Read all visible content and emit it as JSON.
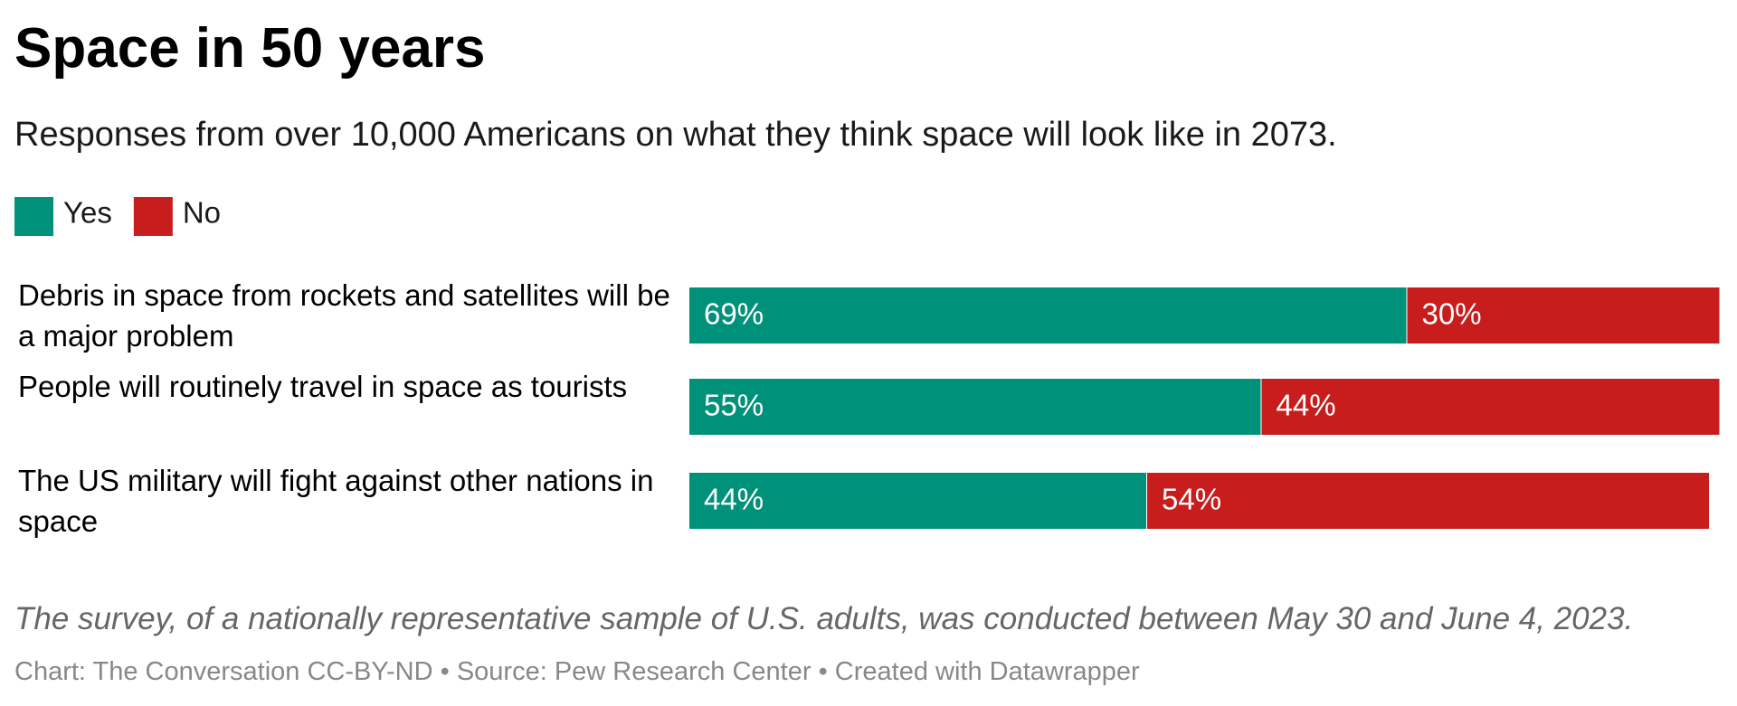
{
  "chart_data": {
    "type": "stacked-bar-horizontal",
    "title": "Space in 50 years",
    "subtitle": "Responses from over 10,000 Americans on what they think space will look like in 2073.",
    "categories": [
      "Debris in space from rockets and satellites will be a major problem",
      "People will routinely travel in space as tourists",
      "The US military will fight against other nations in space"
    ],
    "series": [
      {
        "name": "Yes",
        "color": "#00917a",
        "values": [
          69,
          55,
          44
        ],
        "value_labels": [
          "69%",
          "55%",
          "44%"
        ]
      },
      {
        "name": "No",
        "color": "#c71e1d",
        "values": [
          30,
          44,
          54
        ],
        "value_labels": [
          "30%",
          "44%",
          "54%"
        ]
      }
    ],
    "xlim": [
      0,
      100
    ],
    "note": "The survey, of a nationally representative sample of U.S. adults, was conducted between May 30 and June 4, 2023.",
    "source": "Chart: The Conversation CC-BY-ND • Source: Pew Research Center • Created with Datawrapper"
  }
}
